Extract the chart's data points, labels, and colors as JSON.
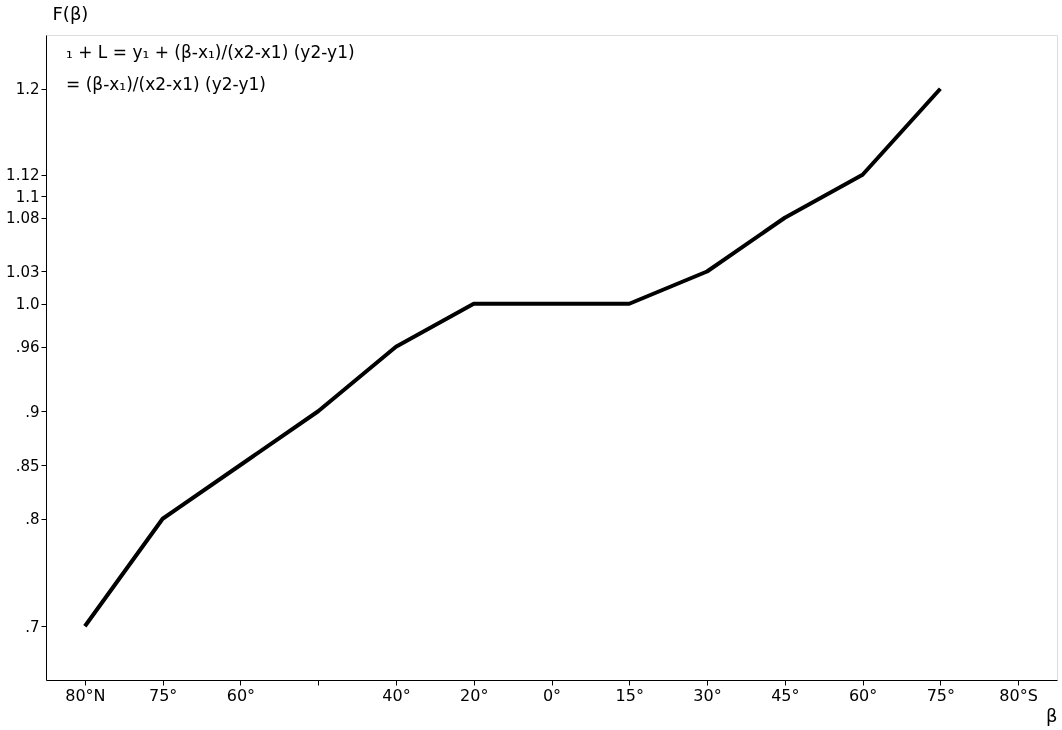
{
  "chart_data": {
    "type": "line",
    "xlabel": "β",
    "ylabel": "F(β)",
    "annotations": [
      "₁ + L = y₁ + (β-x₁)/(x2-x1) (y2-y1)",
      "= (β-x₁)/(x2-x1) (y2-y1)"
    ],
    "categories": [
      "80°N",
      "75°",
      "60°",
      null,
      "40°",
      "20°",
      "0°",
      "15°",
      "30°",
      "45°",
      "60°",
      "75°",
      "80°S"
    ],
    "series": [
      {
        "color": "#000000",
        "values": [
          0.7,
          0.8,
          0.85,
          0.9,
          0.96,
          1.0,
          1.0,
          1.0,
          1.03,
          1.08,
          1.12,
          1.2,
          null
        ]
      }
    ],
    "ylim": [
      0.65,
      1.25
    ],
    "yticks": [
      {
        "value": 0.7,
        "label": ".7"
      },
      {
        "value": 0.8,
        "label": ".8"
      },
      {
        "value": 0.85,
        "label": ".85"
      },
      {
        "value": 0.9,
        "label": ".9"
      },
      {
        "value": 0.96,
        "label": ".96"
      },
      {
        "value": 1.0,
        "label": "1.0"
      },
      1.03,
      1.08,
      {
        "value": 1.1,
        "label": "1.1"
      },
      1.12,
      {
        "value": 1.2,
        "label": "1.2"
      }
    ],
    "grid": false,
    "marker": "none",
    "line_style": "solid"
  }
}
